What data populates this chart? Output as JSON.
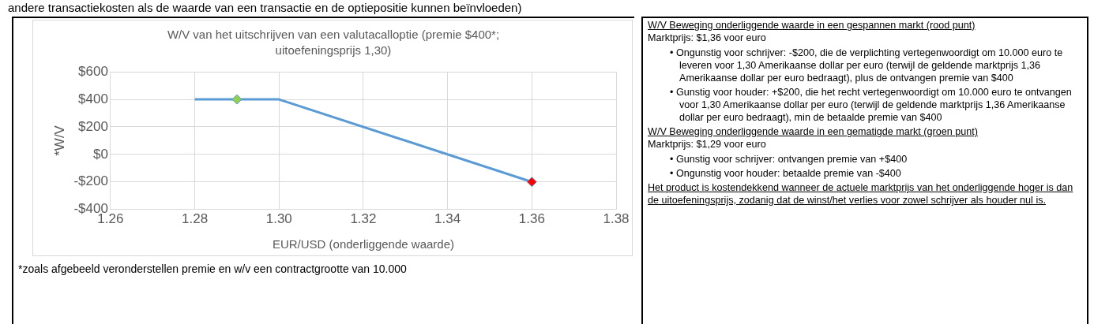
{
  "chart_data": [
    {
      "type": "line",
      "title": "W/V van het uitschrijven van een valutacalloptie (premie $400*; uitoefeningsprijs 1,30)",
      "xlabel": "EUR/USD (onderliggende waarde)",
      "ylabel": "*W/V",
      "series": [
        {
          "type": "line",
          "x": [
            1.28,
            1.3,
            1.36
          ],
          "values": [
            400,
            400,
            -200
          ],
          "color": "#5b9bd5",
          "marker": "none"
        },
        {
          "type": "scatter",
          "x": [
            1.29
          ],
          "values": [
            400
          ],
          "color": "#92d050",
          "marker": "diamond"
        },
        {
          "type": "scatter",
          "x": [
            1.36
          ],
          "values": [
            -200
          ],
          "color": "#ff0000",
          "marker": "diamond"
        }
      ],
      "xlim": [
        1.26,
        1.38
      ],
      "xticks": [
        1.26,
        1.28,
        {
          "value": 1.3,
          "label": "1.30"
        },
        1.32,
        1.34,
        1.36,
        1.38
      ],
      "ylim": [
        -400,
        600
      ],
      "yticks": [
        {
          "value": -400,
          "label": "-$400"
        },
        {
          "value": -200,
          "label": "-$200"
        },
        {
          "value": 0,
          "label": "$0"
        },
        {
          "value": 200,
          "label": "$200"
        },
        {
          "value": 400,
          "label": "$400"
        },
        {
          "value": 600,
          "label": "$600"
        }
      ],
      "grid": true,
      "legend": false,
      "annotations": [
        "andere transactiekosten als de waarde van een transactie en de optiepositie kunnen beïnvloeden)",
        "*zoals afgebeeld veronderstellen premie en w/v een contractgrootte van 10.000"
      ]
    },
    {
      "type": "other",
      "annotations": [
        "W/V Beweging onderliggende waarde in een gespannen markt (rood punt)",
        "Marktprijs: $1,36 voor euro",
        "• Ongunstig voor schrijver: -$200, die de verplichting vertegenwoordigt om 10.000 euro te leveren voor 1,30 Amerikaanse dollar per euro (terwijl de geldende marktprijs 1,36 Amerikaanse dollar per euro bedraagt), plus de ontvangen premie van $400",
        "• Gunstig voor houder: +$200, die het recht vertegenwoordigt om 10.000 euro te ontvangen voor 1,30 Amerikaanse dollar per euro (terwijl de geldende marktprijs 1,36 Amerikaanse dollar per euro bedraagt), min de betaalde premie van $400",
        "W/V Beweging onderliggende waarde in een gematigde markt (groen punt)",
        "Marktprijs: $1,29 voor euro",
        "• Gunstig voor schrijver: ontvangen premie van +$400",
        "• Ongunstig voor houder: betaalde premie van -$400",
        "Het product is kostendekkend wanneer de actuele marktprijs van het onderliggende hoger is dan de uitoefeningsprijs, zodanig dat de winst/het verlies voor zowel schrijver als houder nul is."
      ]
    }
  ]
}
